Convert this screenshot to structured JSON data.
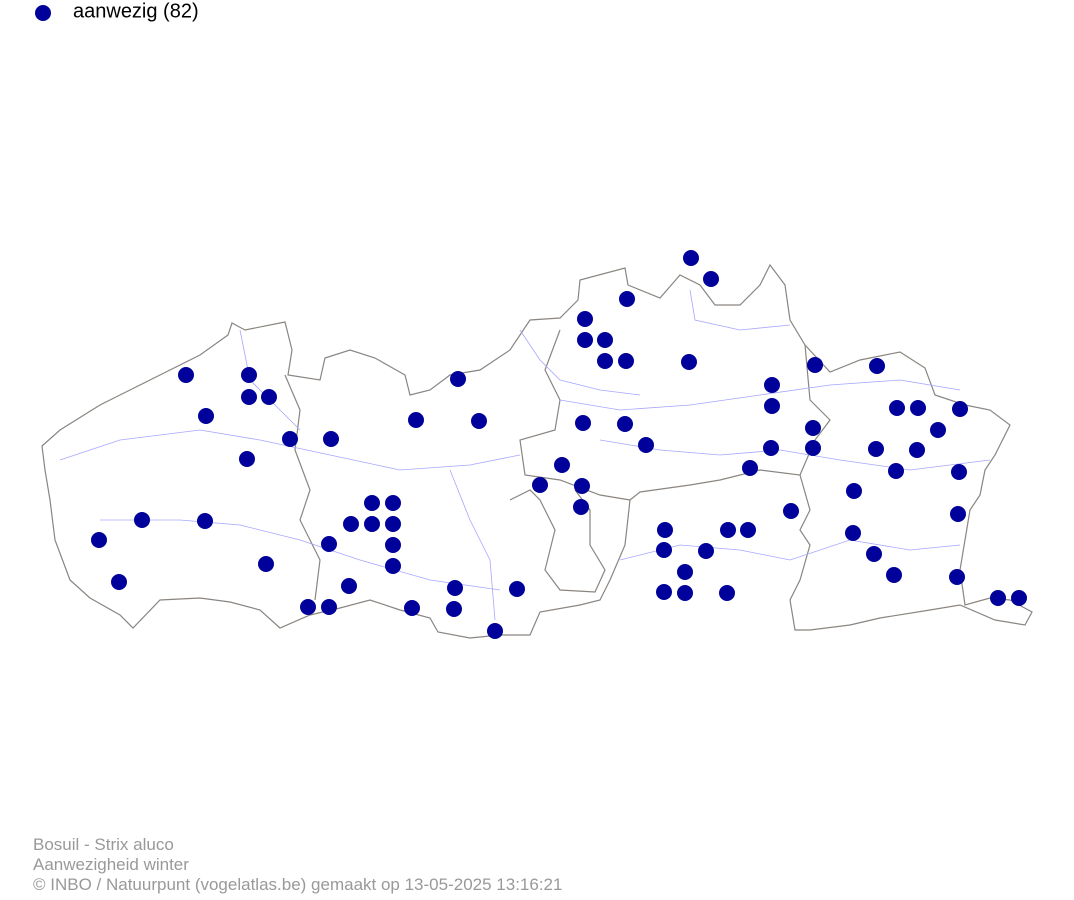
{
  "legend": {
    "label": "aanwezig (82)"
  },
  "footer": {
    "lines": [
      "Bosuil - Strix aluco",
      "Aanwezigheid winter",
      "© INBO / Natuurpunt (vogelatlas.be) gemaakt op 13-05-2025 13:16:21"
    ]
  }
}
